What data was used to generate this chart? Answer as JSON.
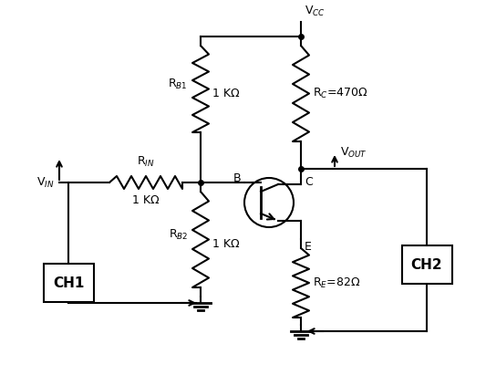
{
  "background": "#ffffff",
  "line_color": "#000000",
  "line_width": 1.5,
  "labels": {
    "VCC": "V$_{CC}$",
    "VOUT": "V$_{OUT}$",
    "VIN": "V$_{IN}$",
    "RB1": "R$_{B1}$",
    "RB2": "R$_{B2}$",
    "RC": "R$_{C}$=470Ω",
    "RE": "R$_{E}$=82Ω",
    "RIN": "R$_{IN}$",
    "RB1_val": "1 KΩ",
    "RB2_val": "1 KΩ",
    "RIN_val": "1 KΩ",
    "CH1": "CH1",
    "CH2": "CH2",
    "B": "B",
    "C": "C",
    "E": "E"
  }
}
